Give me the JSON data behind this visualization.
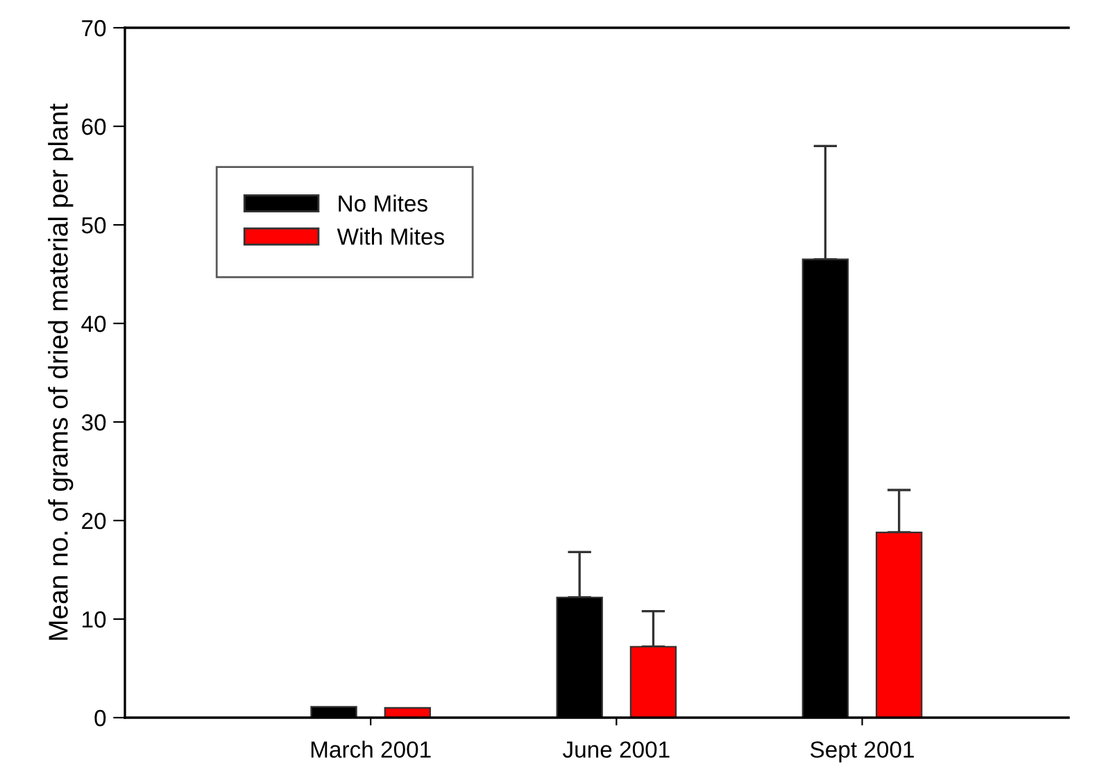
{
  "chart_data": {
    "type": "bar",
    "ylabel": "Mean no. of grams of dried material per plant",
    "categories": [
      "March 2001",
      "June 2001",
      "Sept 2001"
    ],
    "series": [
      {
        "name": "No Mites",
        "color": "#000000",
        "values": [
          1.1,
          12.2,
          46.5
        ],
        "errors": [
          null,
          [
            12.2,
            16.8
          ],
          [
            46.5,
            58.0
          ]
        ]
      },
      {
        "name": "With Mites",
        "color": "#ff0000",
        "values": [
          1.0,
          7.2,
          18.8
        ],
        "errors": [
          null,
          [
            7.2,
            10.8
          ],
          [
            18.8,
            23.1
          ]
        ]
      }
    ],
    "ylim": [
      0,
      70
    ],
    "yticks": [
      0,
      10,
      20,
      30,
      40,
      50,
      60,
      70
    ],
    "grid": false,
    "legend": "top left"
  }
}
